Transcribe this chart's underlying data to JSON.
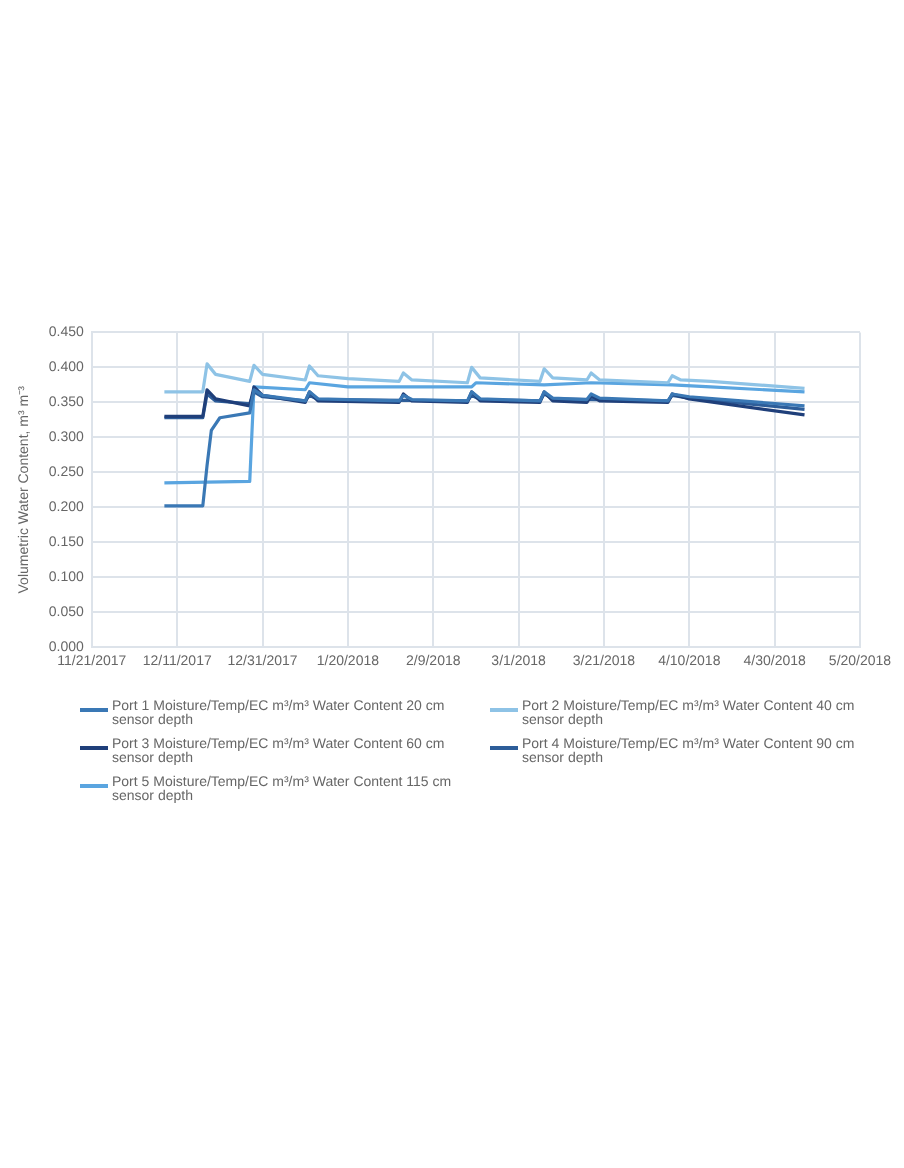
{
  "chart_data": {
    "type": "line",
    "ylabel": "Volumetric Water Content, m³ m⁻³",
    "xlim": [
      "2017-11-21",
      "2018-05-20"
    ],
    "xticks": [
      {
        "value": "2017-11-21",
        "label": "11/21/2017"
      },
      {
        "value": "2017-12-11",
        "label": "12/11/2017"
      },
      {
        "value": "2017-12-31",
        "label": "12/31/2017"
      },
      {
        "value": "2018-01-20",
        "label": "1/20/2018"
      },
      {
        "value": "2018-02-09",
        "label": "2/9/2018"
      },
      {
        "value": "2018-03-01",
        "label": "3/1/2018"
      },
      {
        "value": "2018-03-21",
        "label": "3/21/2018"
      },
      {
        "value": "2018-04-10",
        "label": "4/10/2018"
      },
      {
        "value": "2018-04-30",
        "label": "4/30/2018"
      },
      {
        "value": "2018-05-20",
        "label": "5/20/2018"
      }
    ],
    "ylim": [
      0,
      0.45
    ],
    "yticks": [
      {
        "value": 0,
        "label": "0.000"
      },
      {
        "value": 0.05,
        "label": "0.050"
      },
      {
        "value": 0.1,
        "label": "0.100"
      },
      {
        "value": 0.15,
        "label": "0.150"
      },
      {
        "value": 0.2,
        "label": "0.200"
      },
      {
        "value": 0.25,
        "label": "0.250"
      },
      {
        "value": 0.3,
        "label": "0.300"
      },
      {
        "value": 0.35,
        "label": "0.350"
      },
      {
        "value": 0.4,
        "label": "0.400"
      },
      {
        "value": 0.45,
        "label": "0.450"
      }
    ],
    "grid": true,
    "legend": "bottom",
    "marker": "none",
    "line_style": "solid",
    "series": [
      {
        "name": "Port 1 Moisture/Temp/EC m³/m³ Water Content 20 cm sensor depth",
        "color": "#3a78b5",
        "x": [
          "2017-12-08",
          "2017-12-17",
          "2017-12-18",
          "2017-12-19",
          "2017-12-21",
          "2017-12-28",
          "2017-12-29",
          "2017-12-31",
          "2018-01-10",
          "2018-01-11",
          "2018-01-13",
          "2018-02-01",
          "2018-02-02",
          "2018-02-04",
          "2018-02-17",
          "2018-02-18",
          "2018-02-20",
          "2018-03-06",
          "2018-03-07",
          "2018-03-09",
          "2018-03-17",
          "2018-03-18",
          "2018-03-20",
          "2018-04-05",
          "2018-04-06",
          "2018-04-10",
          "2018-05-07"
        ],
        "values": [
          0.202,
          0.202,
          0.26,
          0.31,
          0.328,
          0.335,
          0.368,
          0.36,
          0.352,
          0.365,
          0.355,
          0.352,
          0.36,
          0.354,
          0.352,
          0.365,
          0.355,
          0.352,
          0.365,
          0.356,
          0.354,
          0.362,
          0.356,
          0.352,
          0.362,
          0.358,
          0.345
        ]
      },
      {
        "name": "Port 2 Moisture/Temp/EC m³/m³ Water Content 40 cm sensor depth",
        "color": "#8ec3e6",
        "x": [
          "2017-12-08",
          "2017-12-17",
          "2017-12-18",
          "2017-12-20",
          "2017-12-28",
          "2017-12-29",
          "2017-12-31",
          "2018-01-10",
          "2018-01-11",
          "2018-01-13",
          "2018-01-20",
          "2018-02-01",
          "2018-02-02",
          "2018-02-04",
          "2018-02-17",
          "2018-02-18",
          "2018-02-20",
          "2018-03-06",
          "2018-03-07",
          "2018-03-09",
          "2018-03-17",
          "2018-03-18",
          "2018-03-20",
          "2018-04-05",
          "2018-04-06",
          "2018-04-08",
          "2018-04-15",
          "2018-05-07"
        ],
        "values": [
          0.365,
          0.365,
          0.405,
          0.39,
          0.38,
          0.403,
          0.39,
          0.382,
          0.402,
          0.388,
          0.384,
          0.38,
          0.392,
          0.382,
          0.378,
          0.4,
          0.385,
          0.38,
          0.398,
          0.385,
          0.382,
          0.392,
          0.382,
          0.378,
          0.388,
          0.382,
          0.38,
          0.37
        ]
      },
      {
        "name": "Port 3 Moisture/Temp/EC m³/m³ Water Content 60 cm sensor depth",
        "color": "#1f3f7a",
        "x": [
          "2017-12-08",
          "2017-12-17",
          "2017-12-18",
          "2017-12-20",
          "2017-12-28",
          "2017-12-29",
          "2017-12-31",
          "2018-01-10",
          "2018-01-11",
          "2018-01-13",
          "2018-02-01",
          "2018-02-02",
          "2018-02-04",
          "2018-02-17",
          "2018-02-18",
          "2018-02-20",
          "2018-03-06",
          "2018-03-07",
          "2018-03-09",
          "2018-03-17",
          "2018-03-18",
          "2018-03-20",
          "2018-04-05",
          "2018-04-06",
          "2018-04-10",
          "2018-05-07"
        ],
        "values": [
          0.33,
          0.33,
          0.368,
          0.355,
          0.345,
          0.372,
          0.36,
          0.35,
          0.365,
          0.352,
          0.35,
          0.362,
          0.352,
          0.35,
          0.365,
          0.352,
          0.35,
          0.365,
          0.352,
          0.35,
          0.36,
          0.352,
          0.35,
          0.362,
          0.355,
          0.332
        ]
      },
      {
        "name": "Port 4 Moisture/Temp/EC m³/m³ Water Content 90 cm sensor depth",
        "color": "#2d5d99",
        "x": [
          "2017-12-08",
          "2017-12-17",
          "2017-12-18",
          "2017-12-20",
          "2017-12-28",
          "2017-12-29",
          "2017-12-31",
          "2018-01-10",
          "2018-01-11",
          "2018-01-13",
          "2018-02-17",
          "2018-02-18",
          "2018-02-20",
          "2018-03-06",
          "2018-03-07",
          "2018-03-09",
          "2018-04-05",
          "2018-04-06",
          "2018-04-10",
          "2018-05-07"
        ],
        "values": [
          0.328,
          0.328,
          0.362,
          0.352,
          0.348,
          0.365,
          0.358,
          0.352,
          0.36,
          0.354,
          0.352,
          0.36,
          0.354,
          0.352,
          0.362,
          0.355,
          0.352,
          0.36,
          0.356,
          0.34
        ]
      },
      {
        "name": "Port 5 Moisture/Temp/EC m³/m³ Water Content 115 cm sensor depth",
        "color": "#5aa5e0",
        "x": [
          "2017-12-08",
          "2017-12-28",
          "2017-12-29",
          "2018-01-10",
          "2018-01-11",
          "2018-01-20",
          "2018-02-18",
          "2018-02-19",
          "2018-03-07",
          "2018-03-18",
          "2018-04-06",
          "2018-04-15",
          "2018-05-07"
        ],
        "values": [
          0.235,
          0.237,
          0.372,
          0.368,
          0.378,
          0.372,
          0.372,
          0.378,
          0.375,
          0.378,
          0.375,
          0.372,
          0.365
        ]
      }
    ]
  }
}
